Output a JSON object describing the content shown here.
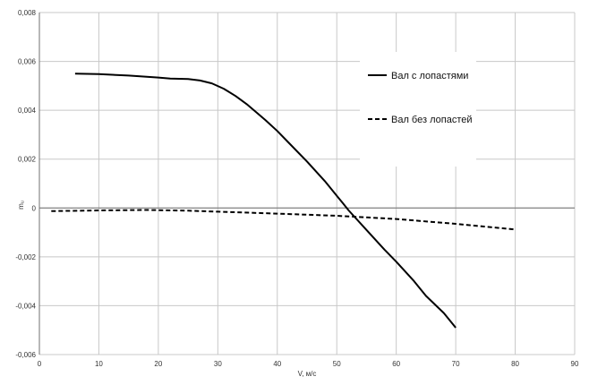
{
  "chart_data": {
    "type": "line",
    "title": "",
    "xlabel": "V, м/с",
    "ylabel": "mᵤ",
    "xlim": [
      0,
      90
    ],
    "ylim": [
      -0.006,
      0.008
    ],
    "x_ticks": [
      0,
      10,
      20,
      30,
      40,
      50,
      60,
      70,
      80,
      90
    ],
    "x_tick_labels": [
      "0",
      "10",
      "20",
      "30",
      "40",
      "50",
      "60",
      "70",
      "80",
      "90"
    ],
    "y_ticks": [
      -0.006,
      -0.004,
      -0.002,
      0,
      0.002,
      0.004,
      0.006,
      0.008
    ],
    "y_tick_labels": [
      "-0,006",
      "-0,004",
      "-0,002",
      "0",
      "0,002",
      "0,004",
      "0,006",
      "0,008"
    ],
    "grid": true,
    "legend_position": "right",
    "series": [
      {
        "name": "Вал с лопастями",
        "style": "solid",
        "color": "#000000",
        "x": [
          6,
          10,
          15,
          20,
          22,
          25,
          27,
          29,
          31,
          33,
          35,
          38,
          40,
          42,
          45,
          48,
          50,
          51,
          52,
          55,
          58,
          60,
          63,
          65,
          68,
          70
        ],
        "y": [
          0.0055,
          0.00548,
          0.00542,
          0.00534,
          0.0053,
          0.00528,
          0.00522,
          0.0051,
          0.00488,
          0.00458,
          0.00422,
          0.0036,
          0.00315,
          0.00265,
          0.0019,
          0.0011,
          0.0005,
          0.0002,
          -0.0001,
          -0.0009,
          -0.0017,
          -0.0022,
          -0.003,
          -0.0036,
          -0.0043,
          -0.0049
        ]
      },
      {
        "name": "Вал без лопастей",
        "style": "dashed",
        "color": "#000000",
        "x": [
          2,
          10,
          18,
          25,
          30,
          40,
          50,
          60,
          70,
          80
        ],
        "y": [
          -0.00013,
          -0.0001,
          -8e-05,
          -0.00011,
          -0.00015,
          -0.00023,
          -0.00032,
          -0.00045,
          -0.00065,
          -0.00088
        ]
      }
    ]
  }
}
